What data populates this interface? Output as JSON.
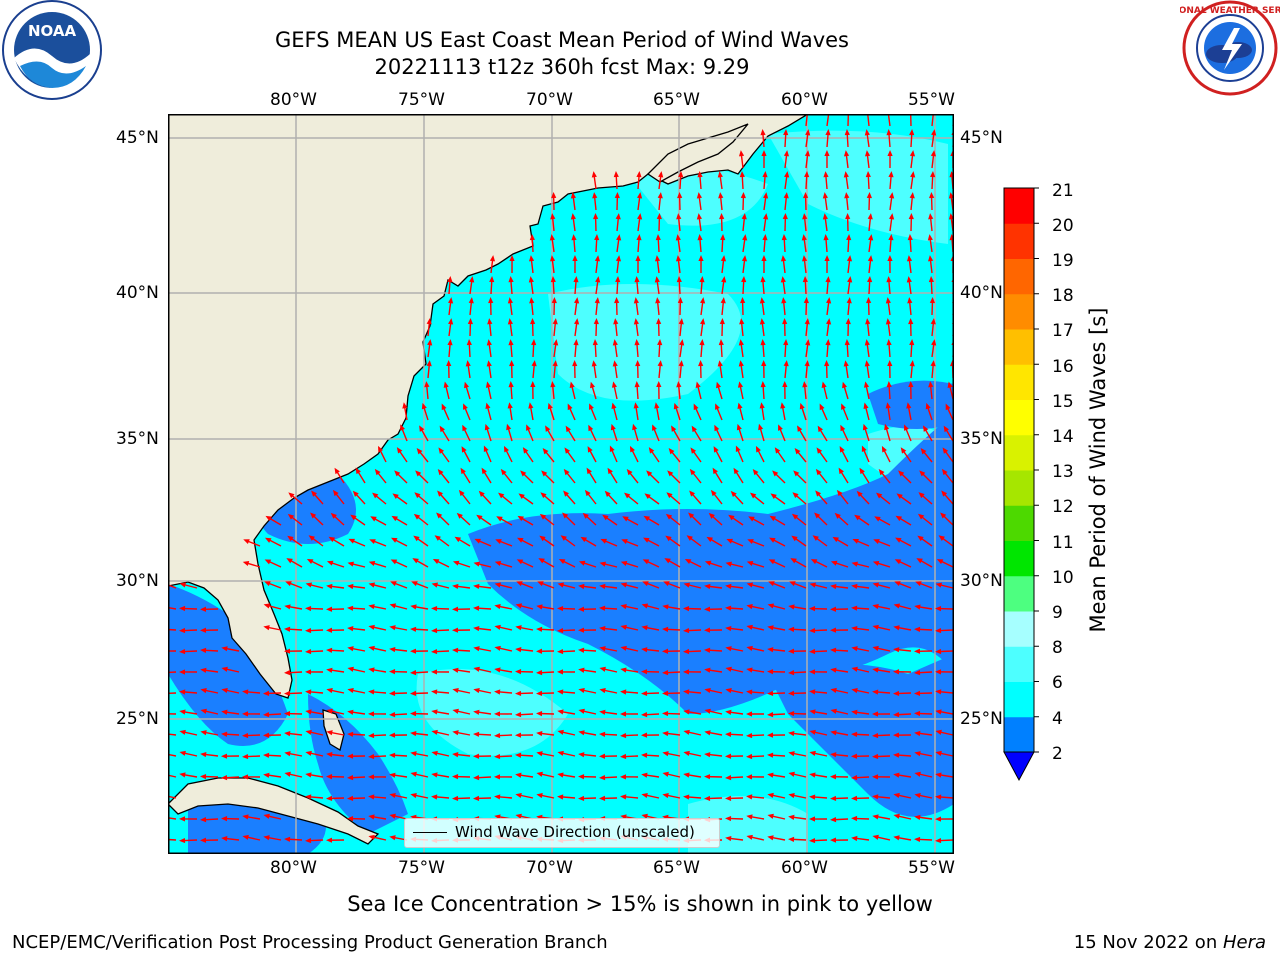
{
  "title_line1": "GEFS MEAN US East Coast Mean Period of Wind Waves",
  "title_line2": "20221113 t12z 360h fcst   Max: 9.29",
  "lon_labels": [
    "80°W",
    "75°W",
    "70°W",
    "65°W",
    "60°W",
    "55°W"
  ],
  "lat_labels": [
    "45°N",
    "40°N",
    "35°N",
    "30°N",
    "25°N"
  ],
  "legend_label": "Wind Wave Direction (unscaled)",
  "colorbar": {
    "label": "Mean Period of Wind Waves [s]",
    "ticks": [
      "21",
      "20",
      "19",
      "18",
      "17",
      "16",
      "15",
      "14",
      "13",
      "12",
      "11",
      "10",
      "9",
      "8",
      "6",
      "4",
      "2"
    ],
    "colors": [
      "#0000ff",
      "#0080ff",
      "#00ffff",
      "#4dffff",
      "#a6ffff",
      "#4dff80",
      "#00e600",
      "#4dd900",
      "#a6e600",
      "#d9f200",
      "#ffff00",
      "#ffe600",
      "#ffbf00",
      "#ff8c00",
      "#ff6600",
      "#ff3300",
      "#ff0000"
    ]
  },
  "sea_ice_note": "Sea Ice Concentration > 15% is shown in pink to yellow",
  "footer_left": "NCEP/EMC/Verification Post Processing Product Generation Branch",
  "footer_right_date": "15 Nov 2022 on ",
  "footer_right_host": "Hera",
  "logos": {
    "left": "NOAA",
    "right": "NATIONAL WEATHER SERVICE"
  },
  "map_extent": {
    "lon": [
      -85,
      -54.5
    ],
    "lat": [
      20.5,
      46
    ]
  },
  "colors": {
    "land": "#efeddb",
    "arrow": "#ff0000",
    "grid": "#b0b0b0"
  }
}
